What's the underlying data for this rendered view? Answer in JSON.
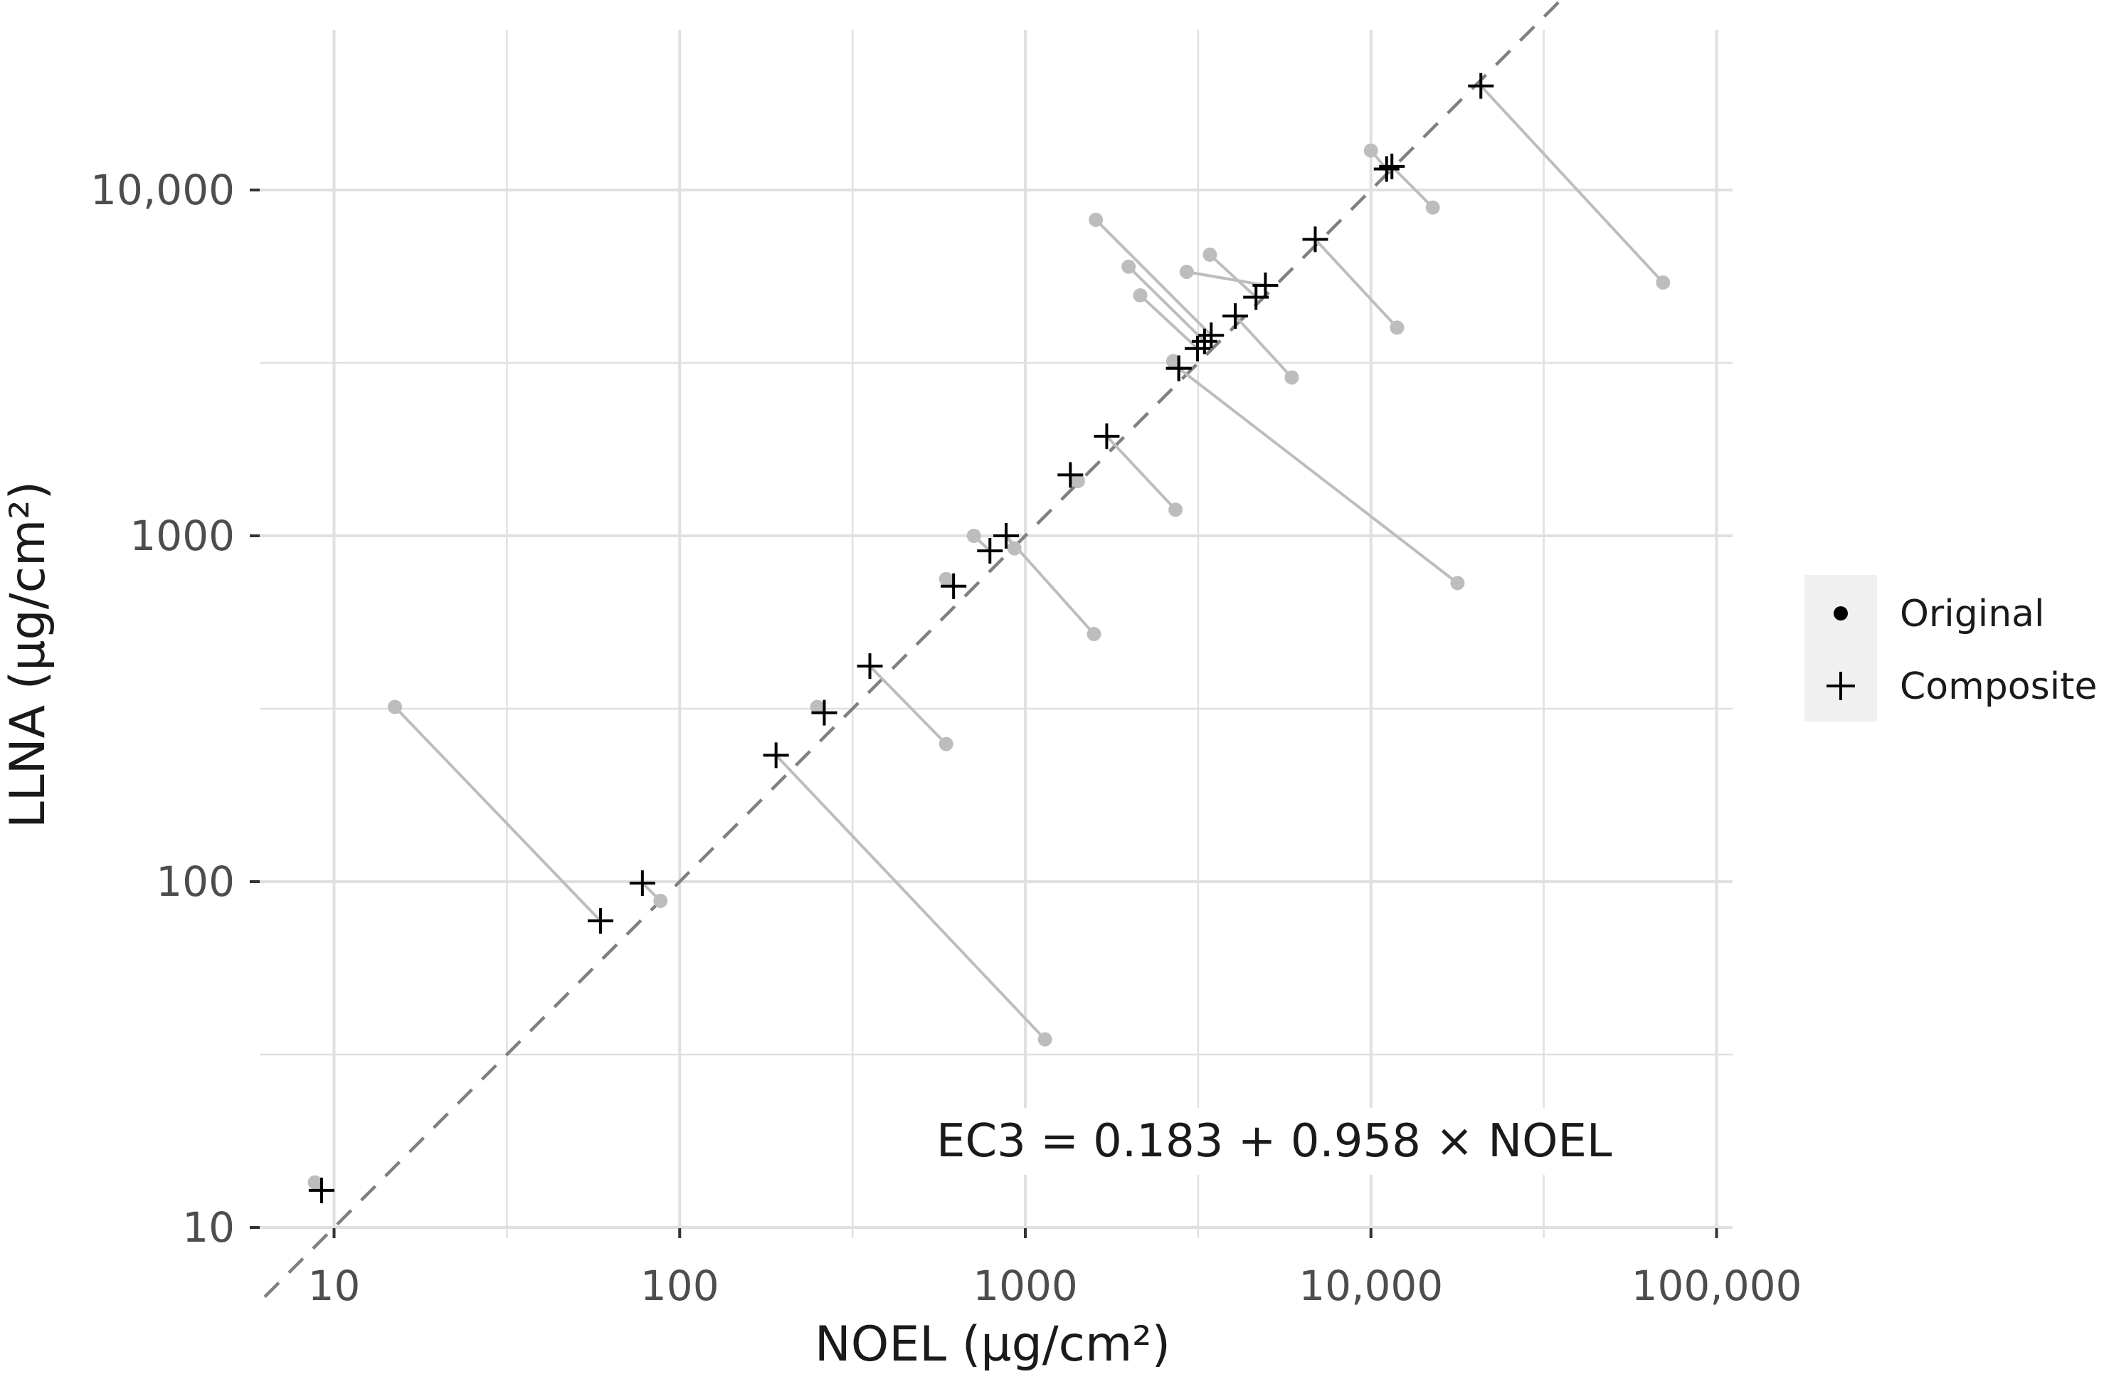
{
  "chart_data": {
    "type": "scatter",
    "scale": "log10-log10",
    "xlabel": "NOEL (µg/cm²)",
    "ylabel": "LLNA (µg/cm²)",
    "xlim": [
      6.3,
      110000
    ],
    "ylim": [
      8.5,
      25000
    ],
    "x_ticks": [
      {
        "value": 10,
        "label": "10"
      },
      {
        "value": 100,
        "label": "100"
      },
      {
        "value": 1000,
        "label": "1000"
      },
      {
        "value": 10000,
        "label": "10,000"
      },
      {
        "value": 100000,
        "label": "100,000"
      }
    ],
    "y_ticks": [
      {
        "value": 10,
        "label": "10"
      },
      {
        "value": 100,
        "label": "100"
      },
      {
        "value": 1000,
        "label": "1000"
      },
      {
        "value": 10000,
        "label": "10,000"
      }
    ],
    "grid": true,
    "legend": {
      "position": "right",
      "items": [
        {
          "label": "Original",
          "shape": "dot"
        },
        {
          "label": "Composite",
          "shape": "cross"
        }
      ]
    },
    "reference_line": {
      "style": "dashed",
      "intercept": 0.183,
      "slope": 0.958
    },
    "annotation": "EC3 = 0.183 + 0.958 × NOEL",
    "colors": {
      "original": "#bdbdbd",
      "segment": "#bdbdbd",
      "composite": "#000000",
      "reference_line": "#808080",
      "grid": "#e0e0e0"
    },
    "pairs": [
      {
        "original": [
          8.8,
          13.5
        ],
        "composite": [
          9.2,
          12.8
        ]
      },
      {
        "original": [
          15,
          320
        ],
        "composite": [
          59,
          77
        ]
      },
      {
        "original": [
          88,
          88
        ],
        "composite": [
          78,
          99
        ]
      },
      {
        "original": [
          1140,
          35
        ],
        "composite": [
          190,
          232
        ]
      },
      {
        "original": [
          250,
          320
        ],
        "composite": [
          262,
          308
        ]
      },
      {
        "original": [
          590,
          250
        ],
        "composite": [
          355,
          420
        ]
      },
      {
        "original": [
          590,
          750
        ],
        "composite": [
          620,
          715
        ]
      },
      {
        "original": [
          710,
          1000
        ],
        "composite": [
          790,
          905
        ]
      },
      {
        "original": [
          1580,
          520
        ],
        "composite": [
          880,
          1000
        ]
      },
      {
        "original": [
          930,
          920
        ],
        "composite": [
          880,
          1000
        ]
      },
      {
        "original": [
          1420,
          1440
        ],
        "composite": [
          1350,
          1500
        ]
      },
      {
        "original": [
          2720,
          1190
        ],
        "composite": [
          1720,
          1940
        ]
      },
      {
        "original": [
          17800,
          730
        ],
        "composite": [
          2780,
          3050
        ]
      },
      {
        "original": [
          2680,
          3200
        ],
        "composite": [
          2780,
          3050
        ]
      },
      {
        "original": [
          2150,
          4960
        ],
        "composite": [
          3150,
          3480
        ]
      },
      {
        "original": [
          1990,
          6000
        ],
        "composite": [
          3300,
          3650
        ]
      },
      {
        "original": [
          1600,
          8200
        ],
        "composite": [
          3450,
          3800
        ]
      },
      {
        "original": [
          5900,
          2870
        ],
        "composite": [
          4050,
          4320
        ]
      },
      {
        "original": [
          3420,
          6500
        ],
        "composite": [
          4650,
          4900
        ]
      },
      {
        "original": [
          2930,
          5800
        ],
        "composite": [
          4950,
          5300
        ]
      },
      {
        "original": [
          11900,
          4000
        ],
        "composite": [
          6900,
          7200
        ]
      },
      {
        "original": [
          10000,
          13000
        ],
        "composite": [
          11100,
          11500
        ]
      },
      {
        "original": [
          15100,
          8900
        ],
        "composite": [
          11500,
          11700
        ]
      },
      {
        "original": [
          70000,
          5400
        ],
        "composite": [
          20800,
          20000
        ]
      }
    ]
  }
}
